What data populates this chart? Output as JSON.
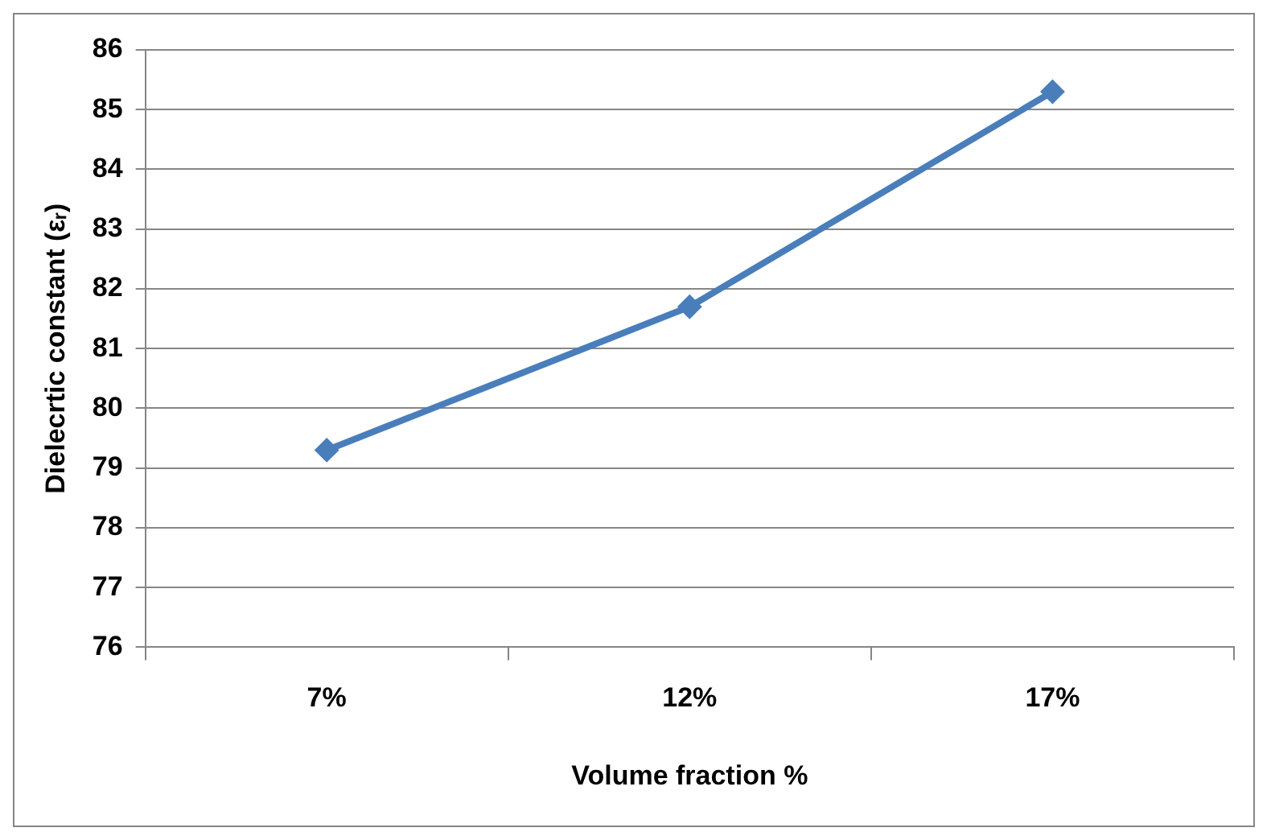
{
  "chart_data": {
    "type": "line",
    "xlabel": "Volume fraction %",
    "ylabel": "Dielecrtic constant (εᵣ)",
    "categories": [
      "7%",
      "12%",
      "17%"
    ],
    "series": [
      {
        "color": "#4a7ebb",
        "values": [
          79.3,
          81.7,
          85.3
        ]
      }
    ],
    "ylim": [
      76,
      86
    ],
    "yticks": [
      76,
      77,
      78,
      79,
      80,
      81,
      82,
      83,
      84,
      85,
      86
    ],
    "grid": "y",
    "legend": false,
    "marker": "diamond",
    "line_style": "solid"
  }
}
